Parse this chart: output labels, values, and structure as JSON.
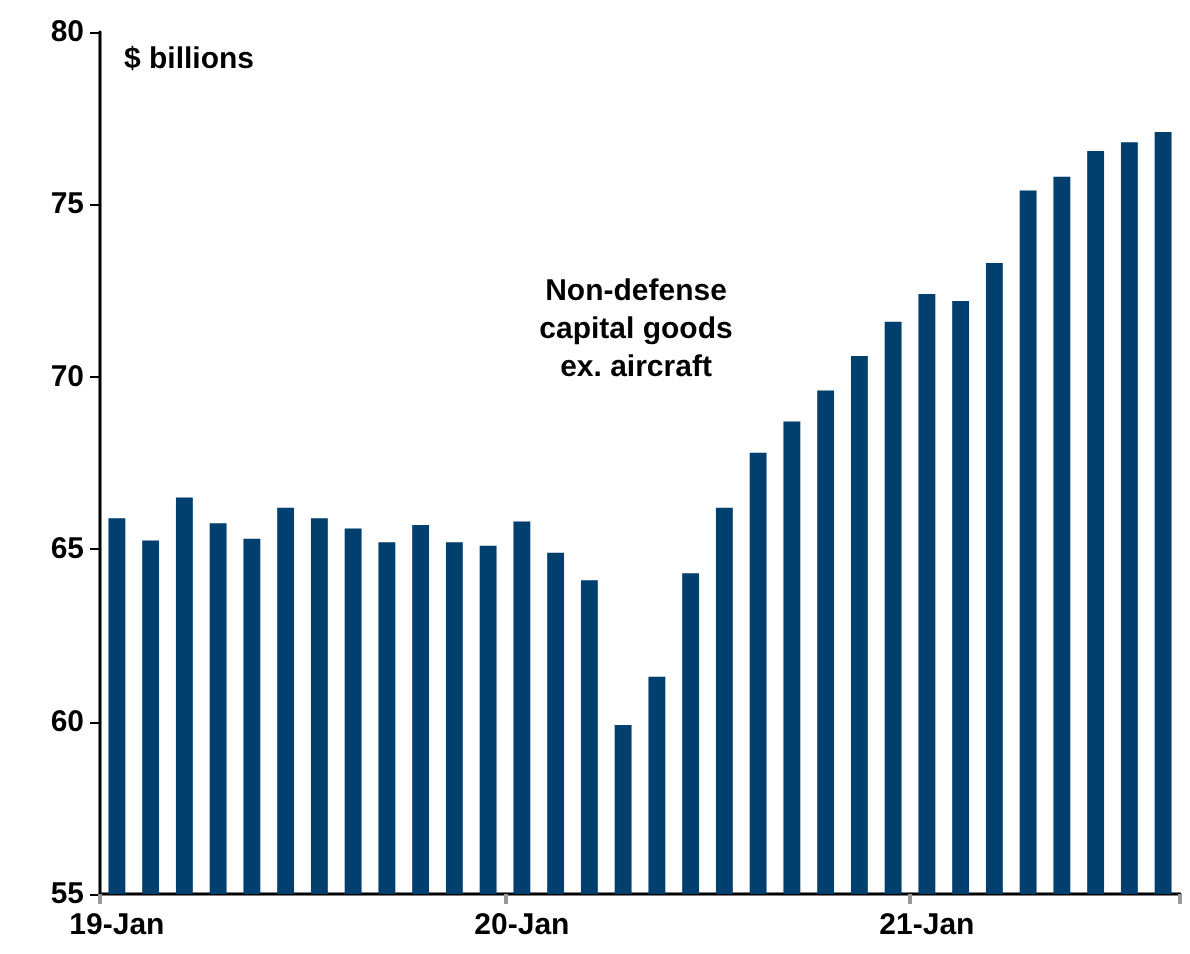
{
  "chart_data": {
    "type": "bar",
    "ylabel": "$ billions",
    "categories": [
      "19-Jan",
      null,
      null,
      null,
      null,
      null,
      null,
      null,
      null,
      null,
      null,
      null,
      "20-Jan",
      null,
      null,
      null,
      null,
      null,
      null,
      null,
      null,
      null,
      null,
      null,
      "21-Jan",
      null,
      null,
      null,
      null,
      null,
      null,
      null
    ],
    "values": [
      65.9,
      65.25,
      66.5,
      65.75,
      65.3,
      66.2,
      65.9,
      65.6,
      65.2,
      65.7,
      65.2,
      65.1,
      65.8,
      64.9,
      64.1,
      59.9,
      61.3,
      64.3,
      66.2,
      67.8,
      68.7,
      69.6,
      70.6,
      71.6,
      72.4,
      72.2,
      73.3,
      75.4,
      75.8,
      76.55,
      76.8,
      77.1
    ],
    "color": "#003f6e",
    "ylim": [
      55,
      80
    ],
    "yticks": [
      55,
      60,
      65,
      70,
      75,
      80
    ],
    "annotations": [
      "Non-defense\ncapital goods\nex. aircraft"
    ]
  }
}
